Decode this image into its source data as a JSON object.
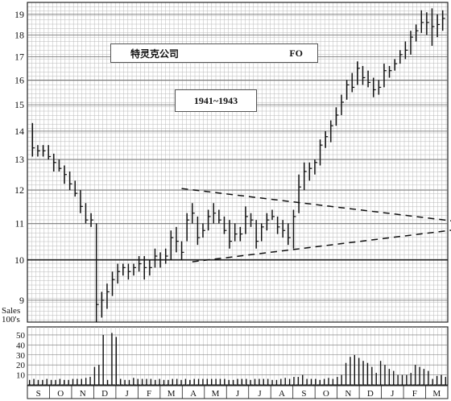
{
  "chart_data": {
    "type": "bar",
    "subtype": "high-low price bars with volume",
    "title_cn": "特灵克公司",
    "ticker": "FO",
    "period": "1941~1943",
    "y_price_ticks": [
      9,
      10,
      11,
      12,
      13,
      14,
      15,
      16,
      17,
      18,
      19
    ],
    "y_price_scale": "log",
    "y_price_range": [
      8.5,
      19.6
    ],
    "volume_label": "Sales\n100's",
    "y_volume_ticks": [
      10,
      20,
      30,
      40,
      50
    ],
    "y_volume_range": [
      0,
      58
    ],
    "month_labels": [
      "S",
      "O",
      "N",
      "D",
      "J",
      "F",
      "M",
      "A",
      "M",
      "J",
      "J",
      "A",
      "S",
      "O",
      "N",
      "D",
      "J",
      "F",
      "M"
    ],
    "price_bars": [
      {
        "h": 14.3,
        "l": 13.1,
        "c": 13.4
      },
      {
        "h": 13.5,
        "l": 13.1,
        "c": 13.3
      },
      {
        "h": 13.5,
        "l": 13.1,
        "c": 13.3
      },
      {
        "h": 13.5,
        "l": 13.0,
        "c": 13.1
      },
      {
        "h": 13.2,
        "l": 12.6,
        "c": 12.9
      },
      {
        "h": 13.0,
        "l": 12.6,
        "c": 12.7
      },
      {
        "h": 12.8,
        "l": 12.2,
        "c": 12.5
      },
      {
        "h": 12.6,
        "l": 12.0,
        "c": 12.2
      },
      {
        "h": 12.3,
        "l": 11.8,
        "c": 11.9
      },
      {
        "h": 12.0,
        "l": 11.3,
        "c": 11.5
      },
      {
        "h": 11.6,
        "l": 11.0,
        "c": 11.1
      },
      {
        "h": 11.3,
        "l": 10.9,
        "c": 11.1
      },
      {
        "h": 11.0,
        "l": 8.5,
        "c": 8.9
      },
      {
        "h": 9.2,
        "l": 8.6,
        "c": 9.0
      },
      {
        "h": 9.4,
        "l": 8.8,
        "c": 9.2
      },
      {
        "h": 9.7,
        "l": 9.1,
        "c": 9.5
      },
      {
        "h": 9.9,
        "l": 9.4,
        "c": 9.7
      },
      {
        "h": 9.9,
        "l": 9.6,
        "c": 9.8
      },
      {
        "h": 9.9,
        "l": 9.5,
        "c": 9.7
      },
      {
        "h": 9.9,
        "l": 9.6,
        "c": 9.8
      },
      {
        "h": 10.1,
        "l": 9.7,
        "c": 9.9
      },
      {
        "h": 10.1,
        "l": 9.5,
        "c": 9.8
      },
      {
        "h": 10.0,
        "l": 9.6,
        "c": 9.8
      },
      {
        "h": 10.3,
        "l": 9.8,
        "c": 10.1
      },
      {
        "h": 10.2,
        "l": 9.8,
        "c": 10.0
      },
      {
        "h": 10.3,
        "l": 9.9,
        "c": 10.1
      },
      {
        "h": 10.8,
        "l": 10.0,
        "c": 10.6
      },
      {
        "h": 10.9,
        "l": 10.2,
        "c": 10.5
      },
      {
        "h": 10.5,
        "l": 10.0,
        "c": 10.2
      },
      {
        "h": 11.3,
        "l": 10.5,
        "c": 11.1
      },
      {
        "h": 11.6,
        "l": 11.0,
        "c": 11.3
      },
      {
        "h": 11.2,
        "l": 10.4,
        "c": 10.6
      },
      {
        "h": 11.0,
        "l": 10.6,
        "c": 10.8
      },
      {
        "h": 11.4,
        "l": 10.8,
        "c": 11.2
      },
      {
        "h": 11.6,
        "l": 11.0,
        "c": 11.3
      },
      {
        "h": 11.4,
        "l": 11.0,
        "c": 11.1
      },
      {
        "h": 11.2,
        "l": 10.7,
        "c": 10.8
      },
      {
        "h": 11.1,
        "l": 10.3,
        "c": 10.5
      },
      {
        "h": 11.0,
        "l": 10.5,
        "c": 10.7
      },
      {
        "h": 10.9,
        "l": 10.5,
        "c": 10.7
      },
      {
        "h": 11.5,
        "l": 10.7,
        "c": 11.2
      },
      {
        "h": 11.3,
        "l": 10.9,
        "c": 11.1
      },
      {
        "h": 11.1,
        "l": 10.3,
        "c": 10.5
      },
      {
        "h": 11.0,
        "l": 10.5,
        "c": 10.9
      },
      {
        "h": 11.3,
        "l": 10.8,
        "c": 11.1
      },
      {
        "h": 11.4,
        "l": 11.1,
        "c": 11.2
      },
      {
        "h": 11.2,
        "l": 10.7,
        "c": 10.9
      },
      {
        "h": 11.1,
        "l": 10.6,
        "c": 10.8
      },
      {
        "h": 11.0,
        "l": 10.4,
        "c": 10.6
      },
      {
        "h": 11.4,
        "l": 10.3,
        "c": 11.2
      },
      {
        "h": 12.5,
        "l": 11.3,
        "c": 12.1
      },
      {
        "h": 12.9,
        "l": 12.0,
        "c": 12.6
      },
      {
        "h": 12.9,
        "l": 12.3,
        "c": 12.7
      },
      {
        "h": 13.0,
        "l": 12.5,
        "c": 12.9
      },
      {
        "h": 13.7,
        "l": 12.8,
        "c": 13.5
      },
      {
        "h": 14.0,
        "l": 13.4,
        "c": 13.8
      },
      {
        "h": 14.4,
        "l": 13.6,
        "c": 14.2
      },
      {
        "h": 14.9,
        "l": 14.2,
        "c": 14.6
      },
      {
        "h": 15.4,
        "l": 14.6,
        "c": 15.1
      },
      {
        "h": 16.0,
        "l": 15.2,
        "c": 15.8
      },
      {
        "h": 16.3,
        "l": 15.5,
        "c": 15.7
      },
      {
        "h": 16.8,
        "l": 15.8,
        "c": 16.5
      },
      {
        "h": 16.6,
        "l": 15.8,
        "c": 16.1
      },
      {
        "h": 16.4,
        "l": 15.7,
        "c": 15.9
      },
      {
        "h": 16.1,
        "l": 15.3,
        "c": 15.6
      },
      {
        "h": 16.0,
        "l": 15.4,
        "c": 15.7
      },
      {
        "h": 16.7,
        "l": 15.7,
        "c": 16.4
      },
      {
        "h": 16.6,
        "l": 16.1,
        "c": 16.4
      },
      {
        "h": 16.9,
        "l": 16.4,
        "c": 16.7
      },
      {
        "h": 17.3,
        "l": 16.7,
        "c": 17.1
      },
      {
        "h": 17.7,
        "l": 16.9,
        "c": 17.3
      },
      {
        "h": 18.2,
        "l": 17.1,
        "c": 17.9
      },
      {
        "h": 18.5,
        "l": 17.7,
        "c": 18.2
      },
      {
        "h": 19.2,
        "l": 18.1,
        "c": 18.6
      },
      {
        "h": 19.1,
        "l": 18.0,
        "c": 18.6
      },
      {
        "h": 19.3,
        "l": 17.5,
        "c": 18.4
      },
      {
        "h": 19.0,
        "l": 17.9,
        "c": 18.5
      },
      {
        "h": 19.2,
        "l": 18.2,
        "c": 18.8
      }
    ],
    "volume": [
      5,
      6,
      5,
      5,
      6,
      5,
      5,
      6,
      5,
      5,
      6,
      6,
      6,
      7,
      8,
      18,
      20,
      50,
      5,
      52,
      48,
      6,
      5,
      5,
      7,
      6,
      6,
      6,
      6,
      5,
      6,
      5,
      5,
      6,
      6,
      5,
      6,
      5,
      6,
      6,
      6,
      6,
      6,
      6,
      6,
      6,
      5,
      5,
      6,
      6,
      6,
      5,
      6,
      6,
      6,
      6,
      5,
      5,
      6,
      7,
      6,
      8,
      8,
      10,
      6,
      6,
      6,
      5,
      6,
      7,
      6,
      8,
      10,
      22,
      28,
      30,
      27,
      24,
      22,
      18,
      12,
      24,
      20,
      16,
      14,
      10,
      10,
      10,
      12,
      20,
      18,
      16,
      14,
      6,
      9,
      10,
      8
    ],
    "annotations": [
      {
        "type": "dashed-trendline",
        "from": {
          "bar": 28,
          "value": 12.05
        },
        "to": {
          "bar": 80,
          "value": 11.05
        }
      },
      {
        "type": "dashed-trendline",
        "from": {
          "bar": 30,
          "value": 9.95
        },
        "to": {
          "bar": 81,
          "value": 10.85
        }
      }
    ],
    "reference_line": 10,
    "grid": true
  }
}
